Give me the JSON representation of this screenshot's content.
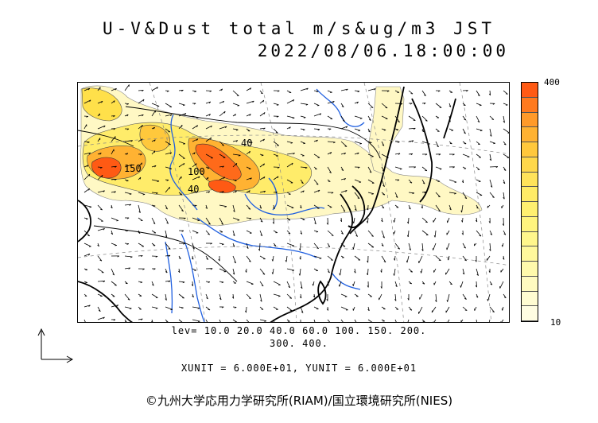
{
  "title": {
    "line1": "U-V&Dust total m/s&ug/m3 JST",
    "line2": "2022/08/06.18:00:00"
  },
  "colorbar": {
    "max_label": "400",
    "min_label": "10",
    "colors": [
      "#ff5a14",
      "#ff7a1e",
      "#ff9a2a",
      "#ffb232",
      "#ffc83c",
      "#ffd84a",
      "#ffe35a",
      "#ffeb66",
      "#fff070",
      "#fff47e",
      "#fff68c",
      "#fff89c",
      "#fffaac",
      "#fffbc0",
      "#fffcd2",
      "#fffde2"
    ]
  },
  "contour_levels": {
    "line1": "lev= 10.0 20.0 40.0 60.0 100. 150. 200.",
    "line2": "300. 400."
  },
  "map_labels": {
    "label_150": "150",
    "label_100a": "100",
    "label_40a": "40",
    "label_40b": "40"
  },
  "units": "XUNIT = 6.000E+01, YUNIT = 6.000E+01",
  "copyright": "©九州大学応用力学研究所(RIAM)/国立環境研究所(NIES)",
  "colors": {
    "wind_arrow": "#000000",
    "rivers": "#1f5fe0",
    "coastline": "#000000",
    "dust_light": "#fff6b8",
    "dust_mid": "#ffe04a",
    "dust_high": "#ff5a14"
  }
}
